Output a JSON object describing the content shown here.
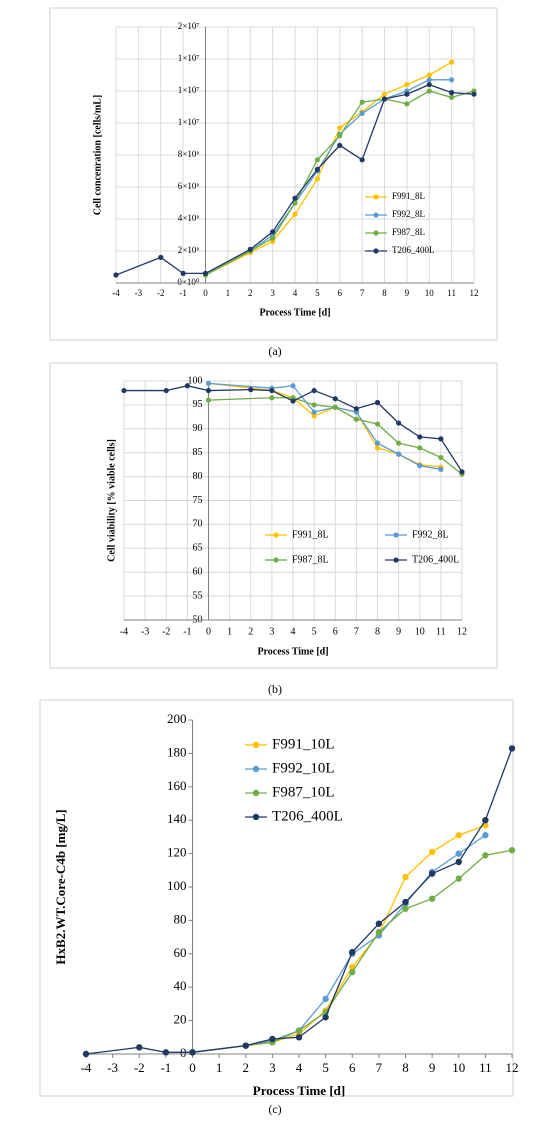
{
  "chart_data": [
    {
      "type": "line",
      "caption": "(a)",
      "ylabel": "Cell concenration  [cells/mL]",
      "xlabel": "Process Time [d]",
      "xlim": [
        -4,
        12
      ],
      "xticks": [
        -4,
        -3,
        -2,
        -1,
        0,
        1,
        2,
        3,
        4,
        5,
        6,
        7,
        8,
        9,
        10,
        11,
        12
      ],
      "ylim": [
        0,
        16000000
      ],
      "yticks": [
        {
          "value": 0,
          "label": "0×10⁰"
        },
        {
          "value": 2000000,
          "label": "2×10⁶"
        },
        {
          "value": 4000000,
          "label": "4×10⁶"
        },
        {
          "value": 6000000,
          "label": "6×10⁶"
        },
        {
          "value": 8000000,
          "label": "8×10⁶"
        },
        {
          "value": 10000000,
          "label": "1×10⁷"
        },
        {
          "value": 12000000,
          "label": "1×10⁷"
        },
        {
          "value": 14000000,
          "label": "1×10⁷"
        },
        {
          "value": 16000000,
          "label": "2×10⁷"
        }
      ],
      "grid": true,
      "legend": "right",
      "series": [
        {
          "name": "F991_8L",
          "color": "#ffc000",
          "x": [
            0,
            2,
            3,
            4,
            5,
            6,
            7,
            8,
            9,
            10,
            11
          ],
          "values": [
            500000,
            1900000,
            2600000,
            4300000,
            6500000,
            9700000,
            10700000,
            11800000,
            12400000,
            13000000,
            13800000
          ]
        },
        {
          "name": "F992_8L",
          "color": "#5b9bd5",
          "x": [
            0,
            2,
            3,
            4,
            5,
            6,
            7,
            8,
            9,
            10,
            11
          ],
          "values": [
            500000,
            2000000,
            3000000,
            5000000,
            7000000,
            9300000,
            10600000,
            11500000,
            12000000,
            12700000,
            12700000
          ]
        },
        {
          "name": "F987_8L",
          "color": "#70ad47",
          "x": [
            0,
            2,
            3,
            4,
            5,
            6,
            7,
            8,
            9,
            10,
            11,
            12
          ],
          "values": [
            500000,
            2000000,
            2800000,
            5000000,
            7700000,
            9200000,
            11300000,
            11500000,
            11200000,
            12000000,
            11600000,
            12000000
          ]
        },
        {
          "name": "T206_400L",
          "color": "#203864",
          "x": [
            -4,
            -2,
            -1,
            0,
            2,
            3,
            4,
            5,
            6,
            7,
            8,
            9,
            10,
            11,
            12
          ],
          "values": [
            500000,
            1600000,
            600000,
            600000,
            2100000,
            3200000,
            5300000,
            7100000,
            8600000,
            7700000,
            11500000,
            11800000,
            12400000,
            11900000,
            11800000
          ]
        }
      ]
    },
    {
      "type": "line",
      "caption": "(b)",
      "ylabel": "Cell viability  [% viable cells]",
      "xlabel": "Process Time [d]",
      "xlim": [
        -4,
        12
      ],
      "xticks": [
        -4,
        -3,
        -2,
        -1,
        0,
        1,
        2,
        3,
        4,
        5,
        6,
        7,
        8,
        9,
        10,
        11,
        12
      ],
      "ylim": [
        50,
        100
      ],
      "yticks": [
        50,
        55,
        60,
        65,
        70,
        75,
        80,
        85,
        90,
        95,
        100
      ],
      "grid": true,
      "legend": "bottom",
      "series": [
        {
          "name": "F991_8L",
          "color": "#ffc000",
          "x": [
            0,
            3,
            4,
            5,
            6,
            7,
            8,
            9,
            10,
            11
          ],
          "values": [
            99.5,
            98,
            96.5,
            92.7,
            94.5,
            93.5,
            86,
            84.7,
            82.5,
            82
          ]
        },
        {
          "name": "F992_8L",
          "color": "#5b9bd5",
          "x": [
            0,
            3,
            4,
            5,
            6,
            7,
            8,
            9,
            10,
            11
          ],
          "values": [
            99.5,
            98.5,
            99,
            93.5,
            94.5,
            93.5,
            87,
            84.7,
            82.3,
            81.5
          ]
        },
        {
          "name": "F987_8L",
          "color": "#70ad47",
          "x": [
            0,
            3,
            4,
            5,
            6,
            7,
            8,
            9,
            10,
            11,
            12
          ],
          "values": [
            96,
            96.5,
            96.5,
            95,
            94.5,
            92,
            91,
            87,
            86,
            84,
            80.5
          ]
        },
        {
          "name": "T206_400L",
          "color": "#203864",
          "x": [
            -4,
            -2,
            -1,
            0,
            2,
            3,
            4,
            5,
            6,
            7,
            8,
            9,
            10,
            11,
            12
          ],
          "values": [
            98,
            98,
            99,
            98,
            98.2,
            98,
            95.8,
            98,
            96.3,
            94.2,
            95.5,
            91.2,
            88.3,
            87.9,
            81
          ]
        }
      ]
    },
    {
      "type": "line",
      "caption": "(c)",
      "ylabel": "HxB2.WT.Core-C4b  [mg/L]",
      "xlabel": "Process Time [d]",
      "xlim": [
        -4,
        12
      ],
      "xticks": [
        -4,
        -3,
        -2,
        -1,
        0,
        1,
        2,
        3,
        4,
        5,
        6,
        7,
        8,
        9,
        10,
        11,
        12
      ],
      "ylim": [
        0,
        200
      ],
      "yticks": [
        0,
        20,
        40,
        60,
        80,
        100,
        120,
        140,
        160,
        180,
        200
      ],
      "grid": false,
      "legend": "upper left",
      "series": [
        {
          "name": "F991_10L",
          "color": "#ffc000",
          "x": [
            0,
            2,
            3,
            4,
            5,
            6,
            7,
            8,
            9,
            10,
            11
          ],
          "values": [
            1,
            5,
            7,
            12,
            26,
            52,
            72,
            106,
            121,
            131,
            137
          ]
        },
        {
          "name": "F992_10L",
          "color": "#5b9bd5",
          "x": [
            0,
            2,
            3,
            4,
            5,
            6,
            7,
            8,
            9,
            10,
            11
          ],
          "values": [
            1,
            5,
            8,
            14,
            33,
            60,
            71,
            90,
            109,
            120,
            131
          ]
        },
        {
          "name": "F987_10L",
          "color": "#70ad47",
          "x": [
            0,
            2,
            3,
            4,
            5,
            6,
            7,
            8,
            9,
            10,
            11,
            12
          ],
          "values": [
            1,
            5,
            7,
            14,
            25,
            49,
            73,
            87,
            93,
            105,
            119,
            122
          ]
        },
        {
          "name": "T206_400L",
          "color": "#203864",
          "x": [
            -4,
            -2,
            -1,
            0,
            2,
            3,
            4,
            5,
            6,
            7,
            8,
            9,
            10,
            11,
            12
          ],
          "values": [
            0,
            4,
            1,
            1,
            5,
            9,
            10,
            22,
            61,
            78,
            91,
            108,
            115,
            140,
            183
          ]
        }
      ]
    }
  ]
}
